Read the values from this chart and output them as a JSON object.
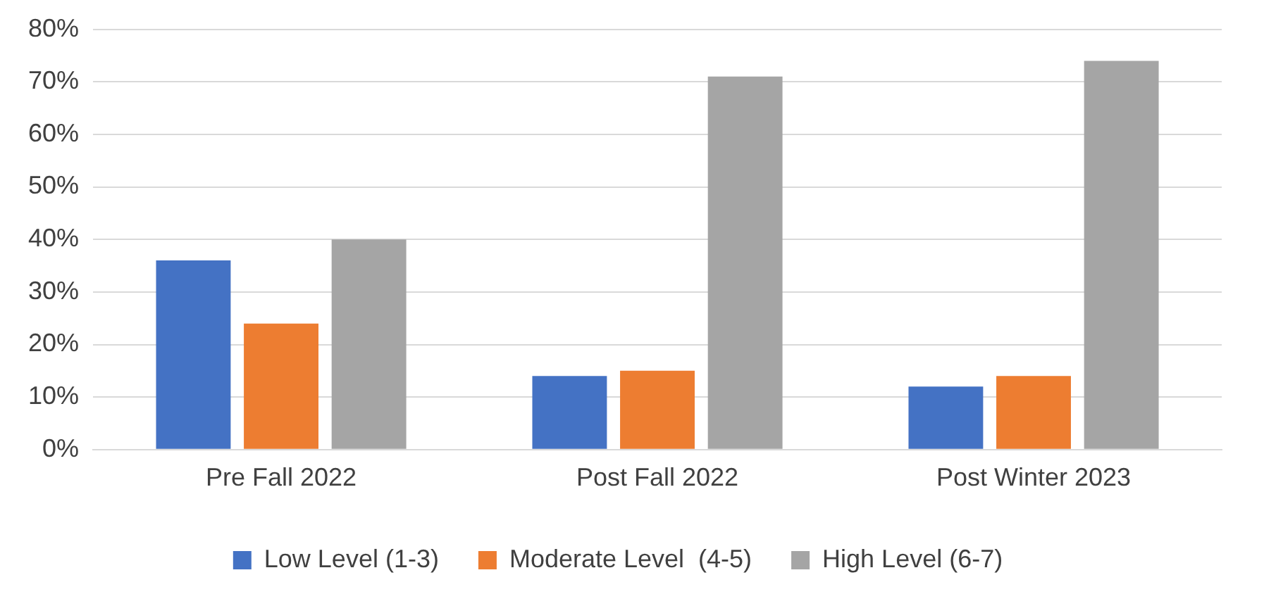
{
  "chart_data": {
    "type": "bar",
    "categories": [
      "Pre Fall 2022",
      "Post Fall 2022",
      "Post Winter 2023"
    ],
    "series": [
      {
        "name": "Low Level (1-3)",
        "color": "#4472c4",
        "values": [
          36,
          14,
          12
        ]
      },
      {
        "name": "Moderate Level  (4-5)",
        "color": "#ed7d31",
        "values": [
          24,
          15,
          14
        ]
      },
      {
        "name": "High Level (6-7)",
        "color": "#a5a5a5",
        "values": [
          40,
          71,
          74
        ]
      }
    ],
    "ylim": [
      0,
      80
    ],
    "yticks": [
      {
        "value": 0,
        "label": "0%"
      },
      {
        "value": 10,
        "label": "10%"
      },
      {
        "value": 20,
        "label": "20%"
      },
      {
        "value": 30,
        "label": "30%"
      },
      {
        "value": 40,
        "label": "40%"
      },
      {
        "value": 50,
        "label": "50%"
      },
      {
        "value": 60,
        "label": "60%"
      },
      {
        "value": 70,
        "label": "70%"
      },
      {
        "value": 80,
        "label": "80%"
      }
    ],
    "grid": "y",
    "legend": "bottom"
  }
}
